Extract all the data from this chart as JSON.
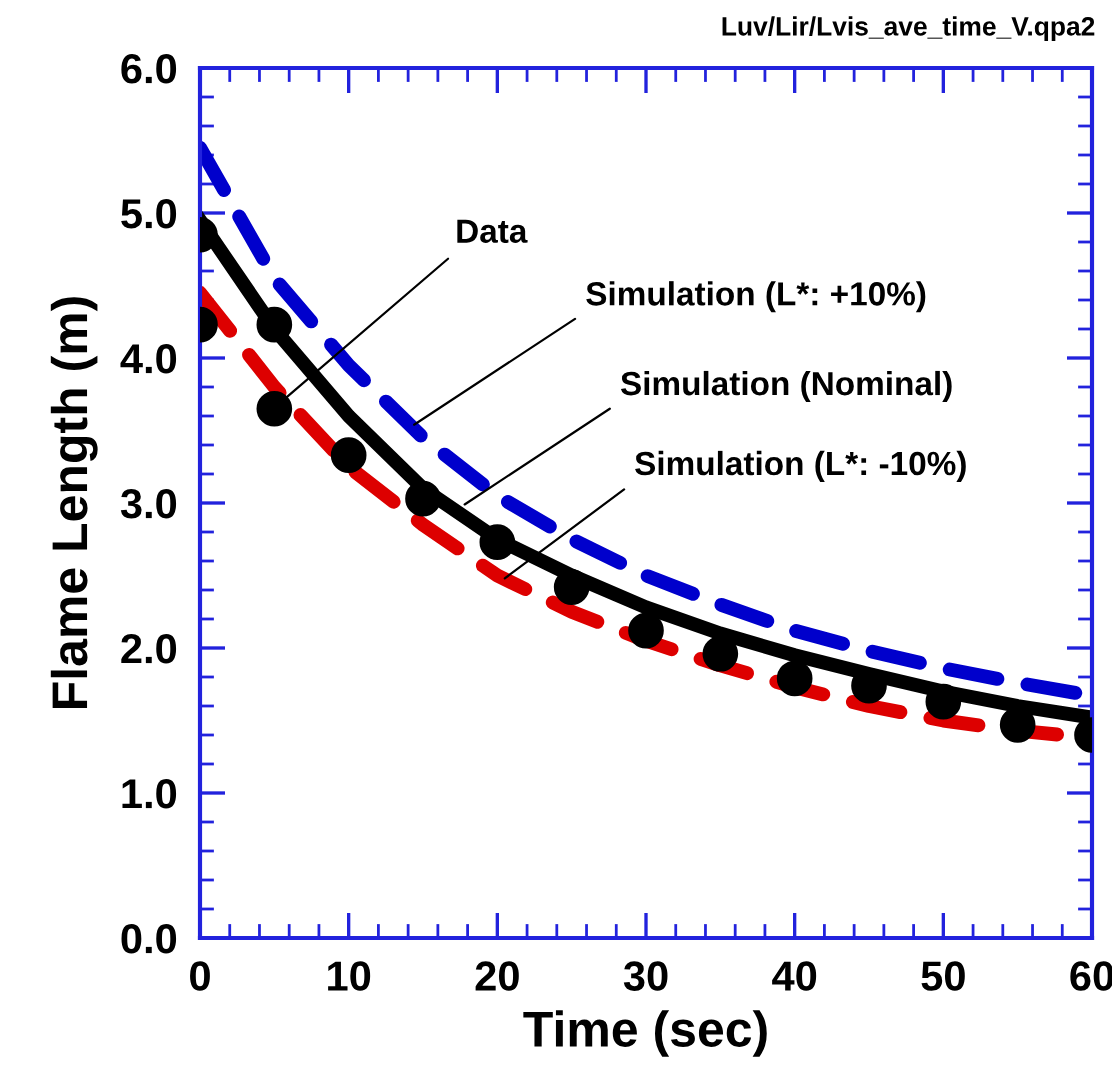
{
  "chart_data": {
    "type": "line",
    "xlabel": "Time (sec)",
    "ylabel": "Flame Length (m)",
    "xlim": [
      0,
      60
    ],
    "xticks": [
      0,
      10,
      20,
      30,
      40,
      50,
      60
    ],
    "ylim": [
      0,
      6
    ],
    "yticks": [
      {
        "value": 0,
        "label": "0.0"
      },
      {
        "value": 1,
        "label": "1.0"
      },
      {
        "value": 2,
        "label": "2.0"
      },
      {
        "value": 3,
        "label": "3.0"
      },
      {
        "value": 4,
        "label": "4.0"
      },
      {
        "value": 5,
        "label": "5.0"
      },
      {
        "value": 6,
        "label": "6.0"
      }
    ],
    "grid": false,
    "legend": false,
    "series": [
      {
        "type": "line",
        "line_style": "dashed",
        "color": "#0000cc",
        "x": [
          0,
          5,
          10,
          15,
          20,
          25,
          30,
          35,
          40,
          45,
          50,
          55,
          60
        ],
        "values": [
          5.45,
          4.55,
          3.95,
          3.45,
          3.05,
          2.75,
          2.5,
          2.3,
          2.12,
          1.98,
          1.86,
          1.76,
          1.67
        ]
      },
      {
        "type": "line",
        "line_style": "dashed",
        "color": "#dd0000",
        "x": [
          0,
          5,
          10,
          15,
          20,
          25,
          30,
          35,
          40,
          45,
          50,
          55,
          60
        ],
        "values": [
          4.45,
          3.8,
          3.25,
          2.85,
          2.5,
          2.25,
          2.05,
          1.88,
          1.73,
          1.6,
          1.5,
          1.43,
          1.38
        ]
      },
      {
        "type": "line",
        "line_style": "solid",
        "color": "#000000",
        "x": [
          0,
          5,
          10,
          15,
          20,
          25,
          30,
          35,
          40,
          45,
          50,
          55,
          60
        ],
        "values": [
          4.95,
          4.2,
          3.6,
          3.1,
          2.75,
          2.5,
          2.28,
          2.1,
          1.95,
          1.82,
          1.7,
          1.6,
          1.52
        ]
      },
      {
        "type": "scatter",
        "marker": "circle",
        "color": "#000000",
        "x": [
          0,
          0,
          5,
          5,
          10,
          15,
          20,
          25,
          30,
          35,
          40,
          45,
          50,
          55,
          60
        ],
        "values": [
          4.85,
          4.23,
          4.23,
          3.65,
          3.33,
          3.03,
          2.73,
          2.42,
          2.12,
          1.96,
          1.79,
          1.74,
          1.63,
          1.47,
          1.4
        ]
      }
    ],
    "annotations": [
      {
        "text": "Data",
        "x": 5.6,
        "y": 3.71
      },
      {
        "text": "Simulation (L*: +10%)",
        "x": 14.4,
        "y": 3.54
      },
      {
        "text": "Simulation (Nominal)",
        "x": 17.8,
        "y": 2.99
      },
      {
        "text": "Simulation (L*: -10%)",
        "x": 20.5,
        "y": 2.48
      },
      "Luv/Lir/Lvis_ave_time_V.qpa2"
    ]
  }
}
